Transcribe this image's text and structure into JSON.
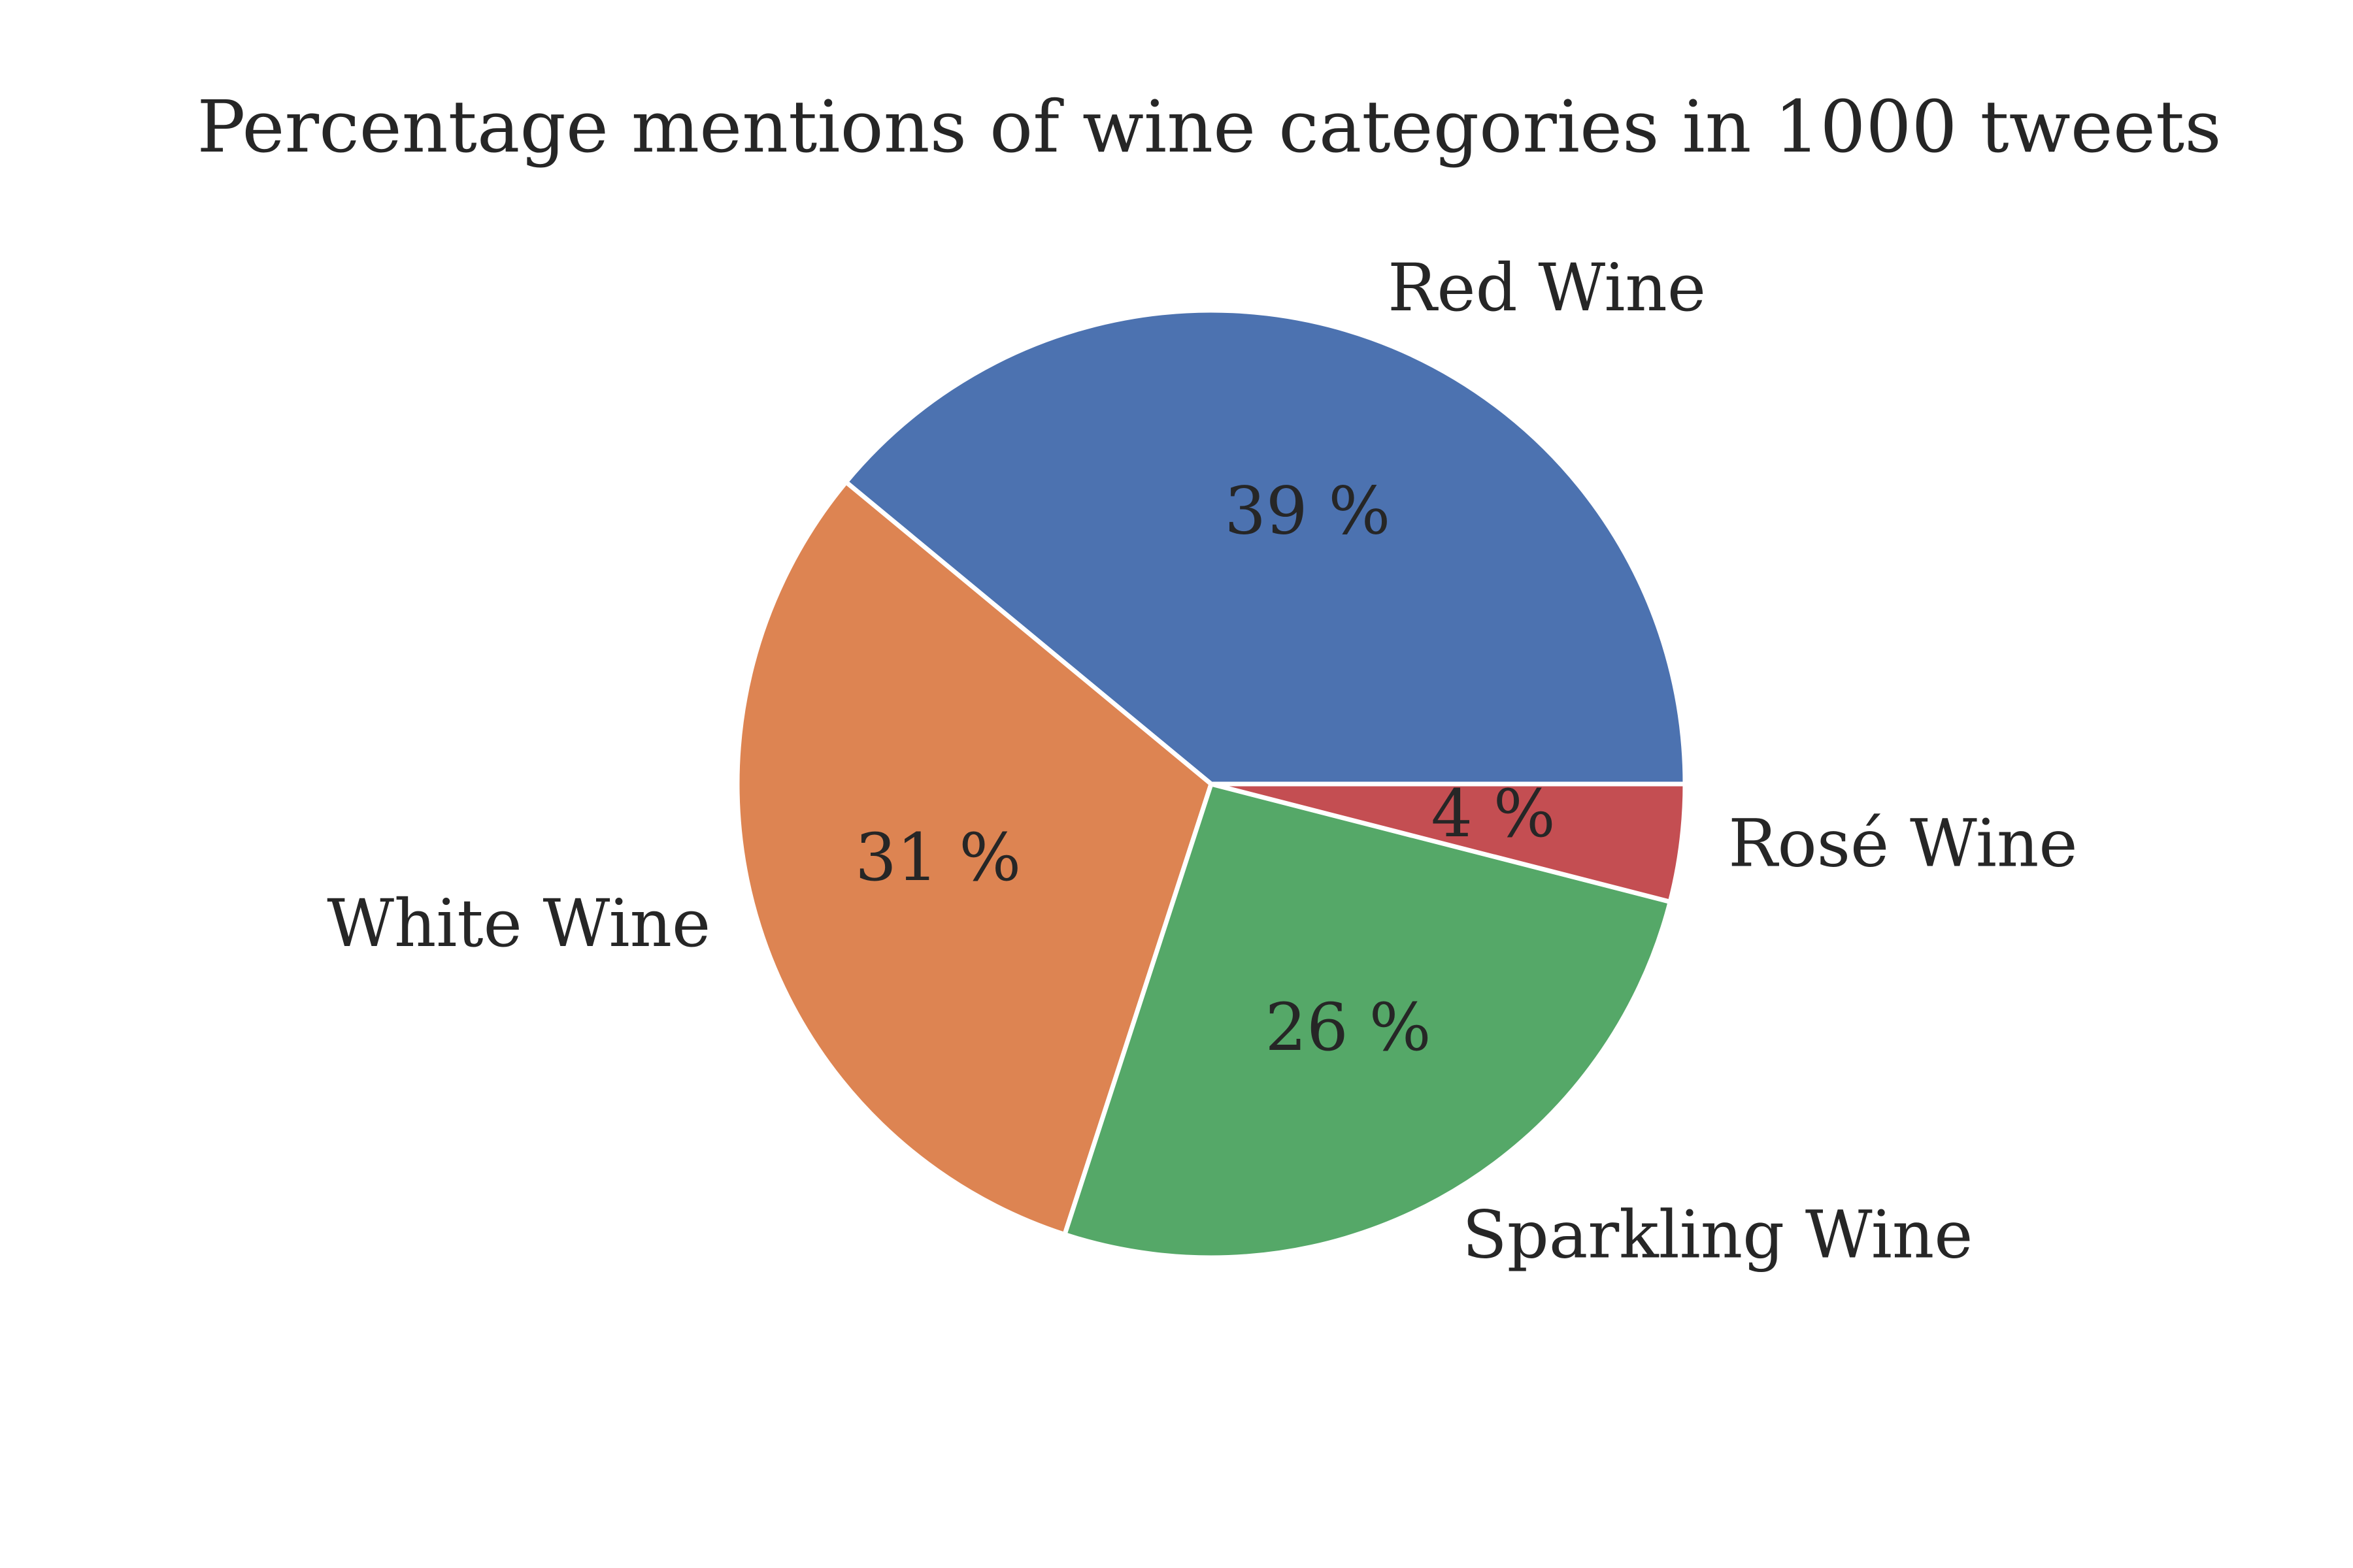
{
  "chart_data": {
    "type": "pie",
    "title": "Percentage mentions of wine categories in 1000 tweets",
    "slices": [
      {
        "label": "Red Wine",
        "value": 39,
        "pct_text": "39 %",
        "color": "#4c72b0"
      },
      {
        "label": "White Wine",
        "value": 31,
        "pct_text": "31 %",
        "color": "#dd8452"
      },
      {
        "label": "Sparkling Wine",
        "value": 26,
        "pct_text": "26 %",
        "color": "#55a868"
      },
      {
        "label": "Rosé Wine",
        "value": 4,
        "pct_text": "4 %",
        "color": "#c44e52"
      }
    ],
    "start_angle": 0,
    "direction": "counterclockwise",
    "legend": false
  }
}
